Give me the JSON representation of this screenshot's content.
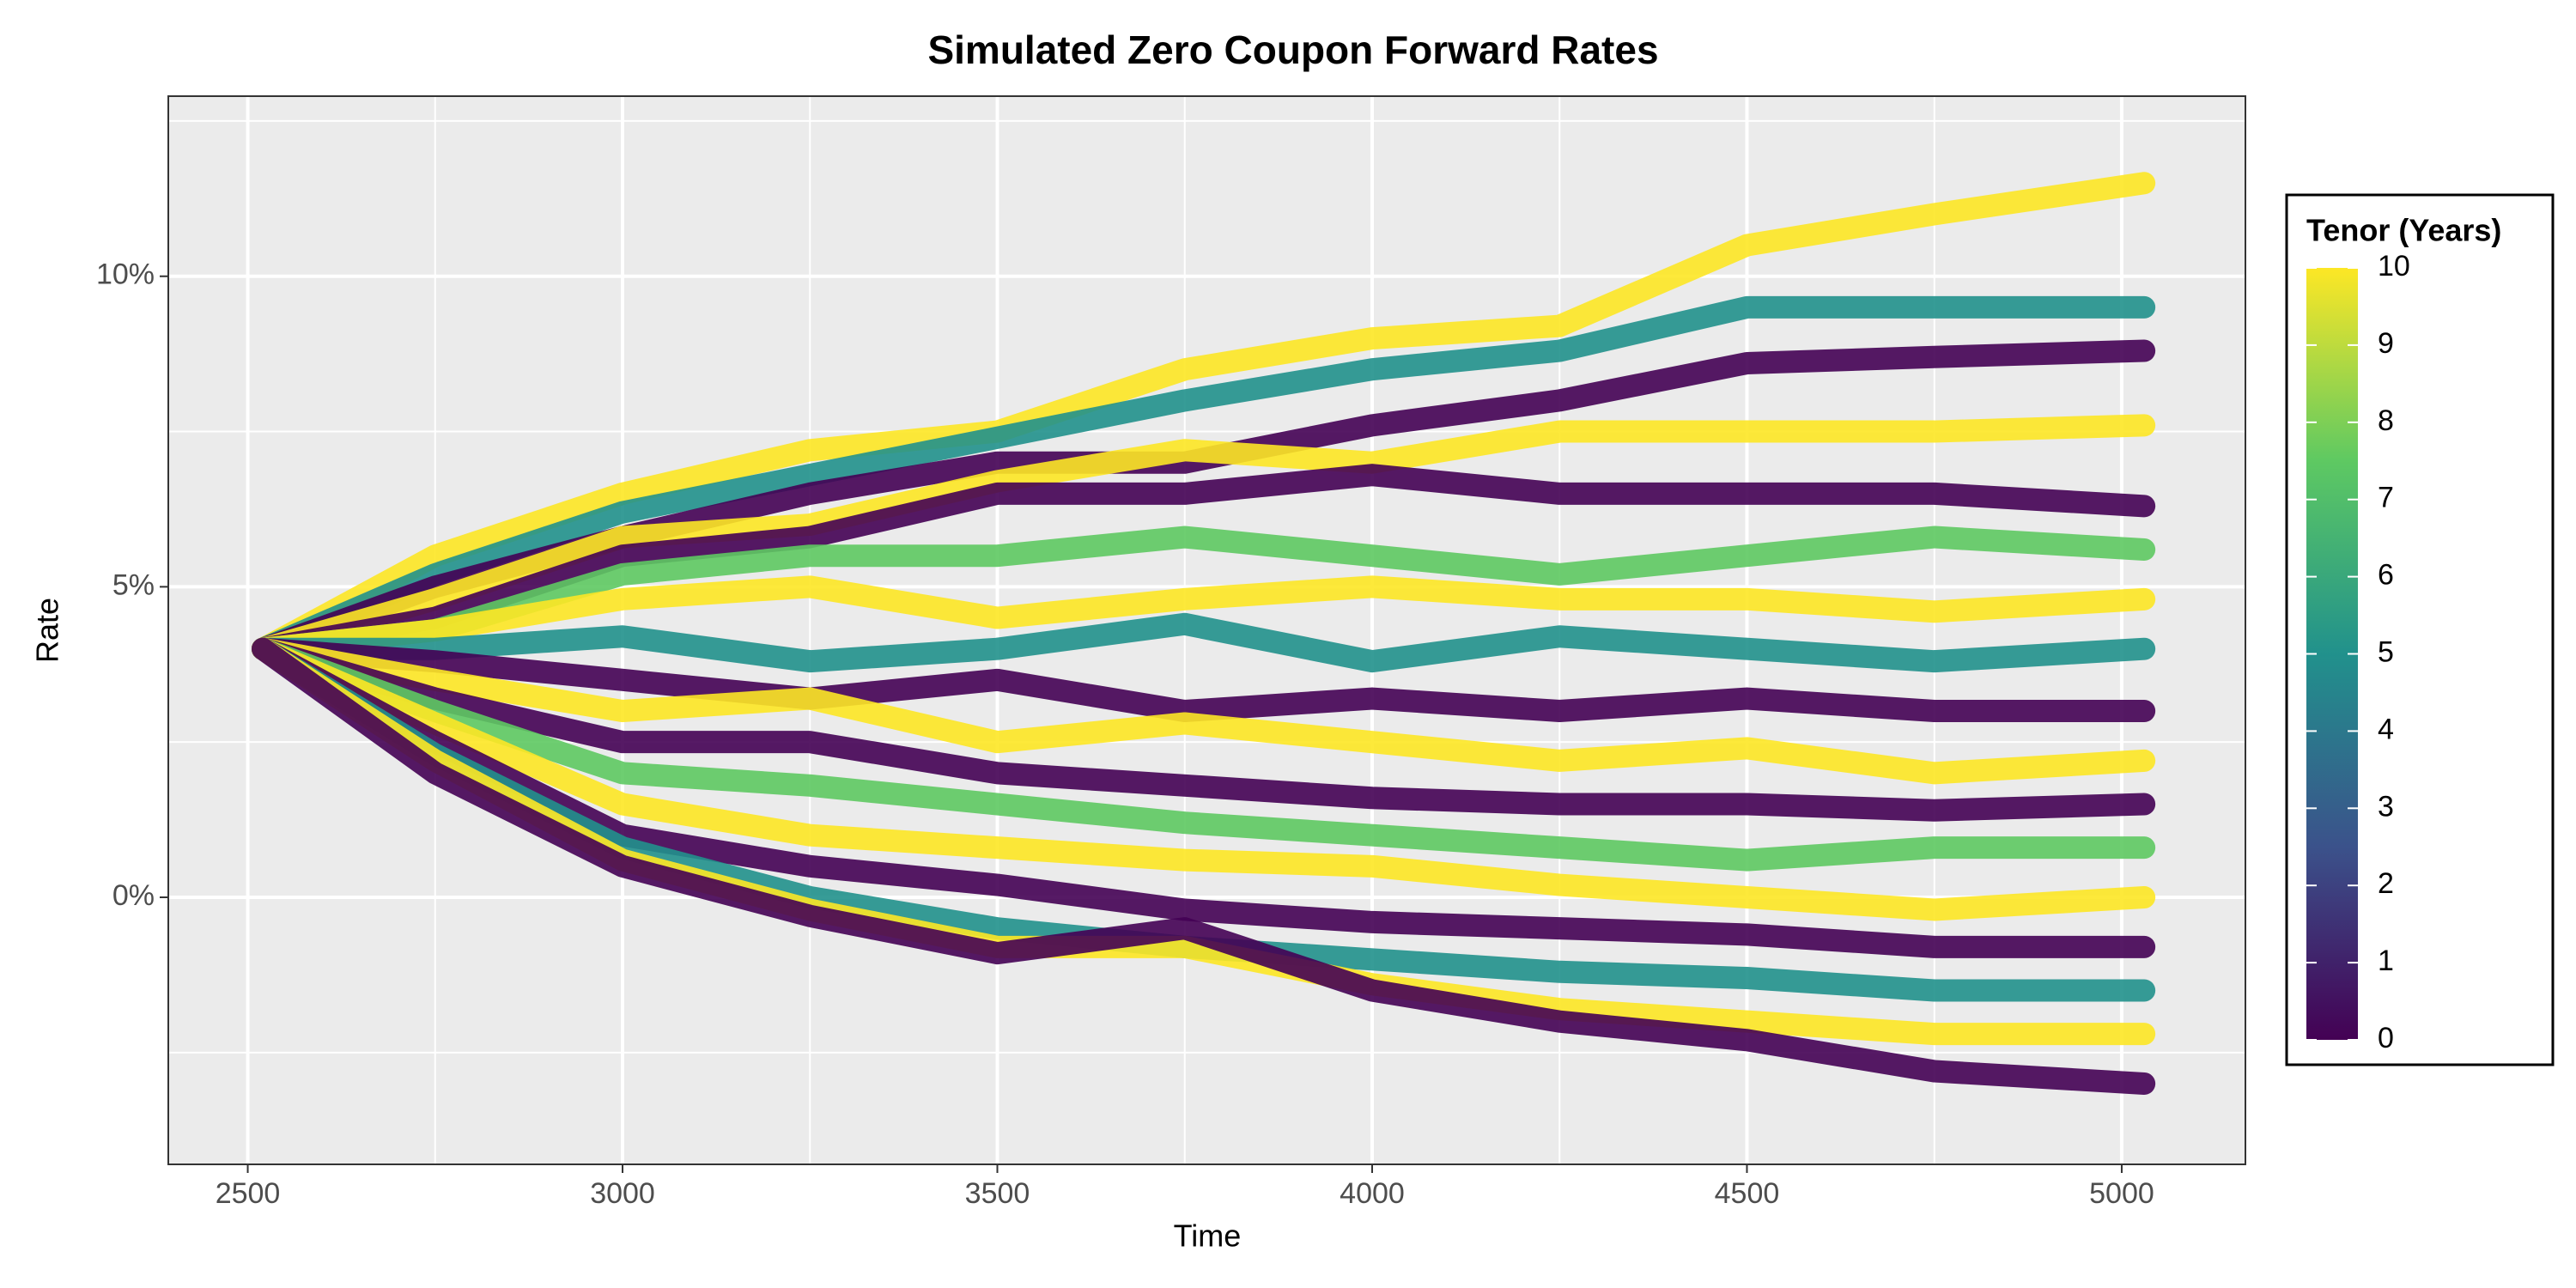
{
  "chart_data": {
    "type": "line",
    "title": "Simulated Zero Coupon Forward Rates",
    "x_label": "Time",
    "y_label": "Rate",
    "x": [
      2520,
      2750,
      3000,
      3250,
      3500,
      3750,
      4000,
      4250,
      4500,
      4750,
      5030
    ],
    "series": [
      {
        "color": "#fde725",
        "values": [
          4.0,
          5.5,
          6.5,
          7.2,
          7.5,
          8.5,
          9.0,
          9.2,
          10.5,
          11.0,
          11.5
        ]
      },
      {
        "color": "#21918c",
        "values": [
          4.0,
          5.2,
          6.2,
          6.8,
          7.4,
          8.0,
          8.5,
          8.8,
          9.5,
          9.5,
          9.5
        ]
      },
      {
        "color": "#440154",
        "values": [
          4.0,
          5.0,
          5.8,
          6.5,
          7.0,
          7.0,
          7.6,
          8.0,
          8.6,
          8.7,
          8.8
        ]
      },
      {
        "color": "#fde725",
        "values": [
          4.0,
          4.8,
          5.8,
          6.0,
          6.7,
          7.2,
          7.0,
          7.5,
          7.5,
          7.5,
          7.6
        ]
      },
      {
        "color": "#440154",
        "values": [
          4.0,
          4.5,
          5.5,
          5.8,
          6.5,
          6.5,
          6.8,
          6.5,
          6.5,
          6.5,
          6.3
        ]
      },
      {
        "color": "#5ec962",
        "values": [
          4.0,
          4.3,
          5.2,
          5.5,
          5.5,
          5.8,
          5.5,
          5.2,
          5.5,
          5.8,
          5.6
        ]
      },
      {
        "color": "#fde725",
        "values": [
          4.0,
          4.3,
          4.8,
          5.0,
          4.5,
          4.8,
          5.0,
          4.8,
          4.8,
          4.6,
          4.8
        ]
      },
      {
        "color": "#21918c",
        "values": [
          4.0,
          4.0,
          4.2,
          3.8,
          4.0,
          4.4,
          3.8,
          4.2,
          4.0,
          3.8,
          4.0
        ]
      },
      {
        "color": "#440154",
        "values": [
          4.0,
          3.8,
          3.5,
          3.2,
          3.5,
          3.0,
          3.2,
          3.0,
          3.2,
          3.0,
          3.0
        ]
      },
      {
        "color": "#fde725",
        "values": [
          4.0,
          3.5,
          3.0,
          3.2,
          2.5,
          2.8,
          2.5,
          2.2,
          2.4,
          2.0,
          2.2
        ]
      },
      {
        "color": "#440154",
        "values": [
          4.0,
          3.2,
          2.5,
          2.5,
          2.0,
          1.8,
          1.6,
          1.5,
          1.5,
          1.4,
          1.5
        ]
      },
      {
        "color": "#5ec962",
        "values": [
          4.0,
          3.0,
          2.0,
          1.8,
          1.5,
          1.2,
          1.0,
          0.8,
          0.6,
          0.8,
          0.8
        ]
      },
      {
        "color": "#fde725",
        "values": [
          4.0,
          2.8,
          1.5,
          1.0,
          0.8,
          0.6,
          0.5,
          0.2,
          0.0,
          -0.2,
          0.0
        ]
      },
      {
        "color": "#440154",
        "values": [
          4.0,
          2.5,
          1.0,
          0.5,
          0.2,
          -0.2,
          -0.4,
          -0.5,
          -0.6,
          -0.8,
          -0.8
        ]
      },
      {
        "color": "#21918c",
        "values": [
          4.0,
          2.3,
          0.8,
          0.0,
          -0.5,
          -0.8,
          -1.0,
          -1.2,
          -1.3,
          -1.5,
          -1.5
        ]
      },
      {
        "color": "#fde725",
        "values": [
          4.0,
          2.2,
          0.6,
          -0.2,
          -0.8,
          -0.8,
          -1.4,
          -1.8,
          -2.0,
          -2.2,
          -2.2
        ]
      },
      {
        "color": "#440154",
        "values": [
          4.0,
          2.0,
          0.5,
          -0.3,
          -0.9,
          -0.5,
          -1.5,
          -2.0,
          -2.3,
          -2.8,
          -3.0
        ]
      }
    ],
    "xlim": [
      2394,
      5165
    ],
    "xticks": [
      2500,
      3000,
      3500,
      4000,
      4500,
      5000
    ],
    "xminor": [
      2750,
      3250,
      3750,
      4250,
      4750
    ],
    "ylim": [
      -4.3,
      12.9
    ],
    "yticks": [
      {
        "value": 0,
        "label": "0%"
      },
      {
        "value": 5,
        "label": "5%"
      },
      {
        "value": 10,
        "label": "10%"
      }
    ],
    "yminor": [
      -2.5,
      2.5,
      7.5,
      12.5
    ],
    "grid": true,
    "colorbar": {
      "title": "Tenor (Years)",
      "limits": [
        0,
        10
      ],
      "ticks": [
        0,
        1,
        2,
        3,
        4,
        5,
        6,
        7,
        8,
        9,
        10
      ],
      "colors": [
        "#440154",
        "#3b528b",
        "#21918c",
        "#5ec962",
        "#fde725"
      ]
    }
  }
}
